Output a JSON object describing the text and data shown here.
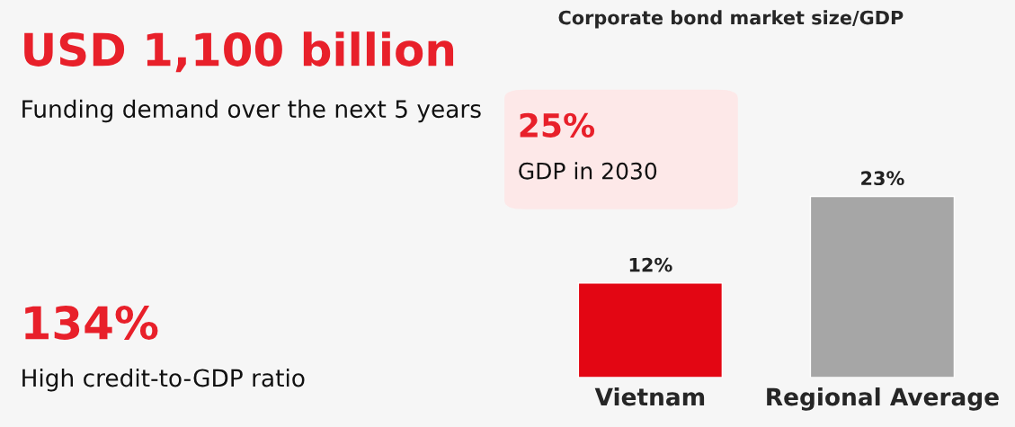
{
  "chart_data": [
    {
      "type": "other",
      "annotations": [
        "USD 1,100 billion",
        "Funding demand over the next 5 years",
        "134%",
        "High credit-to-GDP ratio"
      ]
    },
    {
      "type": "bar",
      "title": "Corporate bond market size/GDP",
      "categories": [
        "Vietnam",
        "Regional Average"
      ],
      "values": [
        12,
        23
      ],
      "colors": [
        "#e30613",
        "#a6a6a6"
      ],
      "data_labels": true,
      "value_labels": [
        "12%",
        "23%"
      ],
      "annotations": [
        "25%",
        "GDP in 2030"
      ]
    }
  ]
}
